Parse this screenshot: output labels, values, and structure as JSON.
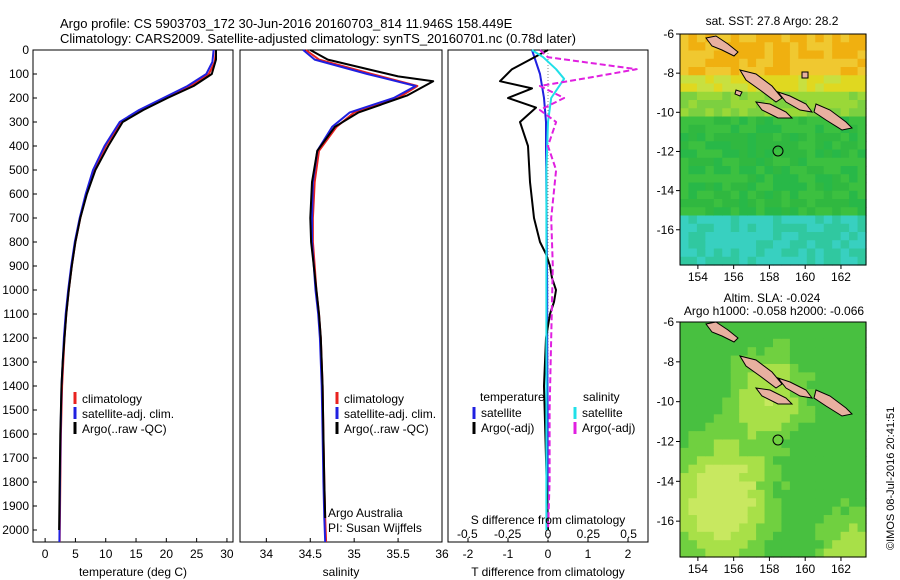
{
  "title_line1": "Argo profile: CS 5903703_172 30-Jun-2016 20160703_814 11.946S 158.449E",
  "title_line2": "Climatology: CARS2009. Satellite-adjusted climatology: synTS_20160701.nc (0.78d later)",
  "depth_ticks": [
    0,
    100,
    200,
    300,
    400,
    500,
    600,
    700,
    800,
    900,
    1000,
    1100,
    1200,
    1300,
    1400,
    1500,
    1600,
    1700,
    1800,
    1900,
    2000
  ],
  "panel_temp": {
    "xlabel": "temperature (deg C)",
    "xticks": [
      "0",
      "5",
      "10",
      "15",
      "20",
      "25",
      "30"
    ],
    "legend": [
      "climatology",
      "satellite-adj. clim.",
      "Argo(..raw -QC)"
    ]
  },
  "panel_sal": {
    "xlabel": "salinity",
    "xticks": [
      "34",
      "34.5",
      "35",
      "35.5",
      "36"
    ],
    "legend": [
      "climatology",
      "satellite-adj. clim.",
      "Argo(..raw -QC)"
    ],
    "credit1": "Argo Australia",
    "credit2": "PI: Susan Wijffels"
  },
  "panel_diff": {
    "xlabel": "T difference from climatology",
    "xlabel_top": "S difference from climatology",
    "xticks_t": [
      "-2",
      "-1",
      "0",
      "1",
      "2"
    ],
    "xticks_s": [
      "-0.5",
      "-0.25",
      "0",
      "0.25",
      "0.5"
    ],
    "legend_t_head": "temperature",
    "legend_s_head": "salinity",
    "legend_t": [
      "satellite",
      "Argo(-adj)"
    ],
    "legend_s": [
      "satellite",
      "Argo(-adj)"
    ]
  },
  "map_sst": {
    "title": "sat. SST: 27.8 Argo: 28.2",
    "yticks": [
      "-6",
      "-8",
      "-10",
      "-12",
      "-14",
      "-16"
    ],
    "xticks": [
      "154",
      "156",
      "158",
      "160",
      "162"
    ]
  },
  "map_sla": {
    "title1": "Altim. SLA: -0.024",
    "title2": "Argo h1000: -0.058 h2000: -0.066",
    "yticks": [
      "-6",
      "-8",
      "-10",
      "-12",
      "-14",
      "-16"
    ],
    "xticks": [
      "154",
      "156",
      "158",
      "160",
      "162"
    ]
  },
  "footer": "©IMOS 08-Jul-2016 20:41:51",
  "colors": {
    "clim": "#e8221f",
    "sat": "#2020e0",
    "argo": "#000000",
    "sal_sat": "#20e0e8",
    "sal_argo": "#e020e0"
  },
  "chart_data": [
    {
      "type": "line",
      "title": "",
      "xlabel": "temperature (deg C)",
      "ylabel": "",
      "xlim": [
        -2,
        31
      ],
      "ylim": [
        2050,
        0
      ],
      "series": [
        {
          "name": "climatology",
          "x": [
            28.2,
            28.0,
            27.0,
            24.0,
            20.0,
            16.0,
            12.5,
            10.0,
            8.0,
            6.8,
            5.8,
            5.0,
            4.4,
            3.9,
            3.5,
            3.2,
            3.0,
            2.8,
            2.6,
            2.5,
            2.4
          ],
          "y": [
            0,
            50,
            100,
            150,
            200,
            250,
            300,
            400,
            500,
            600,
            700,
            800,
            900,
            1000,
            1100,
            1200,
            1300,
            1400,
            1600,
            1800,
            2050
          ]
        },
        {
          "name": "satellite-adj. clim.",
          "x": [
            27.8,
            27.6,
            26.6,
            23.5,
            19.5,
            15.5,
            12.3,
            9.8,
            7.9,
            6.7,
            5.7,
            4.9,
            4.3,
            3.8,
            3.4,
            3.1,
            2.9,
            2.7,
            2.55,
            2.45,
            2.35
          ],
          "y": [
            0,
            50,
            100,
            150,
            200,
            250,
            300,
            400,
            500,
            600,
            700,
            800,
            900,
            1000,
            1100,
            1200,
            1300,
            1400,
            1600,
            1800,
            2050
          ]
        },
        {
          "name": "Argo(..raw -QC)",
          "x": [
            28.2,
            28.2,
            27.5,
            24.5,
            20.2,
            16.2,
            12.8,
            10.4,
            8.3,
            6.9,
            5.8,
            5.0,
            4.4,
            3.9,
            3.5,
            3.2,
            2.9,
            2.7,
            2.5,
            2.4,
            2.3
          ],
          "y": [
            0,
            40,
            100,
            150,
            200,
            250,
            300,
            400,
            500,
            600,
            700,
            800,
            900,
            1000,
            1100,
            1200,
            1300,
            1400,
            1600,
            1800,
            2000
          ]
        }
      ]
    },
    {
      "type": "line",
      "title": "",
      "xlabel": "salinity",
      "ylabel": "",
      "xlim": [
        33.7,
        36.0
      ],
      "ylim": [
        2050,
        0
      ],
      "series": [
        {
          "name": "climatology",
          "x": [
            34.45,
            34.6,
            35.2,
            35.72,
            35.5,
            35.0,
            34.8,
            34.6,
            34.55,
            34.53,
            34.53,
            34.55,
            34.57,
            34.6,
            34.62,
            34.64,
            34.65,
            34.66,
            34.67,
            34.68
          ],
          "y": [
            0,
            40,
            100,
            150,
            200,
            260,
            320,
            420,
            550,
            700,
            800,
            900,
            1000,
            1100,
            1200,
            1400,
            1600,
            1800,
            1950,
            2050
          ]
        },
        {
          "name": "satellite-adj. clim.",
          "x": [
            34.42,
            34.55,
            35.15,
            35.7,
            35.45,
            34.95,
            34.75,
            34.58,
            34.53,
            34.52,
            34.52,
            34.54,
            34.56,
            34.59,
            34.61,
            34.63,
            34.64,
            34.65,
            34.66,
            34.67
          ],
          "y": [
            0,
            40,
            100,
            150,
            200,
            260,
            320,
            420,
            550,
            700,
            800,
            900,
            1000,
            1100,
            1200,
            1400,
            1600,
            1800,
            1950,
            2050
          ]
        },
        {
          "name": "Argo(..raw -QC)",
          "x": [
            34.5,
            34.7,
            35.5,
            35.9,
            35.6,
            35.05,
            34.78,
            34.58,
            34.52,
            34.5,
            34.51,
            34.54,
            34.57,
            34.6,
            34.62,
            34.64,
            34.65,
            34.66,
            34.67
          ],
          "y": [
            0,
            40,
            110,
            130,
            190,
            260,
            320,
            420,
            550,
            700,
            800,
            900,
            1000,
            1100,
            1200,
            1400,
            1600,
            1800,
            1950
          ]
        }
      ]
    },
    {
      "type": "line",
      "title": "",
      "xlabel": "T difference from climatology",
      "ylabel": "",
      "xlim": [
        -2.5,
        2.5
      ],
      "ylim": [
        2050,
        0
      ],
      "series": [
        {
          "name": "temperature satellite",
          "x": [
            -0.4,
            -0.3,
            -0.2,
            -0.15,
            -0.1,
            -0.05,
            -0.05,
            -0.04,
            -0.03,
            -0.02,
            -0.02,
            -0.01,
            -0.01,
            -0.01
          ],
          "y": [
            0,
            50,
            100,
            150,
            200,
            300,
            400,
            600,
            800,
            1000,
            1200,
            1500,
            1800,
            2000
          ]
        },
        {
          "name": "temperature Argo(-adj)",
          "x": [
            0,
            -0.9,
            -1.2,
            -0.4,
            -1.0,
            -0.3,
            -0.7,
            -0.5,
            -0.45,
            -0.35,
            -0.2,
            -0.05,
            0.05,
            0.1,
            0.2,
            0.15,
            0.05,
            -0.05,
            -0.1,
            -0.05,
            0
          ],
          "y": [
            0,
            80,
            130,
            160,
            200,
            240,
            300,
            400,
            550,
            700,
            800,
            850,
            900,
            950,
            1000,
            1050,
            1100,
            1200,
            1400,
            1700,
            2000
          ]
        }
      ]
    },
    {
      "type": "line",
      "title": "",
      "xlabel": "S difference from climatology",
      "ylabel": "",
      "xlim": [
        -0.62,
        0.62
      ],
      "ylim": [
        2050,
        0
      ],
      "series": [
        {
          "name": "salinity satellite",
          "x": [
            -0.1,
            -0.03,
            0.05,
            0.1,
            0.02,
            0.0,
            -0.01,
            -0.01,
            -0.01,
            -0.01,
            -0.01,
            -0.01
          ],
          "y": [
            0,
            30,
            80,
            120,
            200,
            300,
            500,
            800,
            1000,
            1400,
            1800,
            2000
          ]
        },
        {
          "name": "salinity Argo(-adj)",
          "x": [
            -0.05,
            0.0,
            0.55,
            0.3,
            -0.05,
            0.1,
            -0.05,
            0.05,
            0.0,
            0.05,
            0.02,
            0.03,
            0.02,
            0.01,
            0.01,
            0.0
          ],
          "y": [
            0,
            30,
            80,
            110,
            150,
            200,
            250,
            300,
            400,
            500,
            700,
            900,
            1200,
            1500,
            1800,
            2000
          ]
        }
      ]
    }
  ]
}
